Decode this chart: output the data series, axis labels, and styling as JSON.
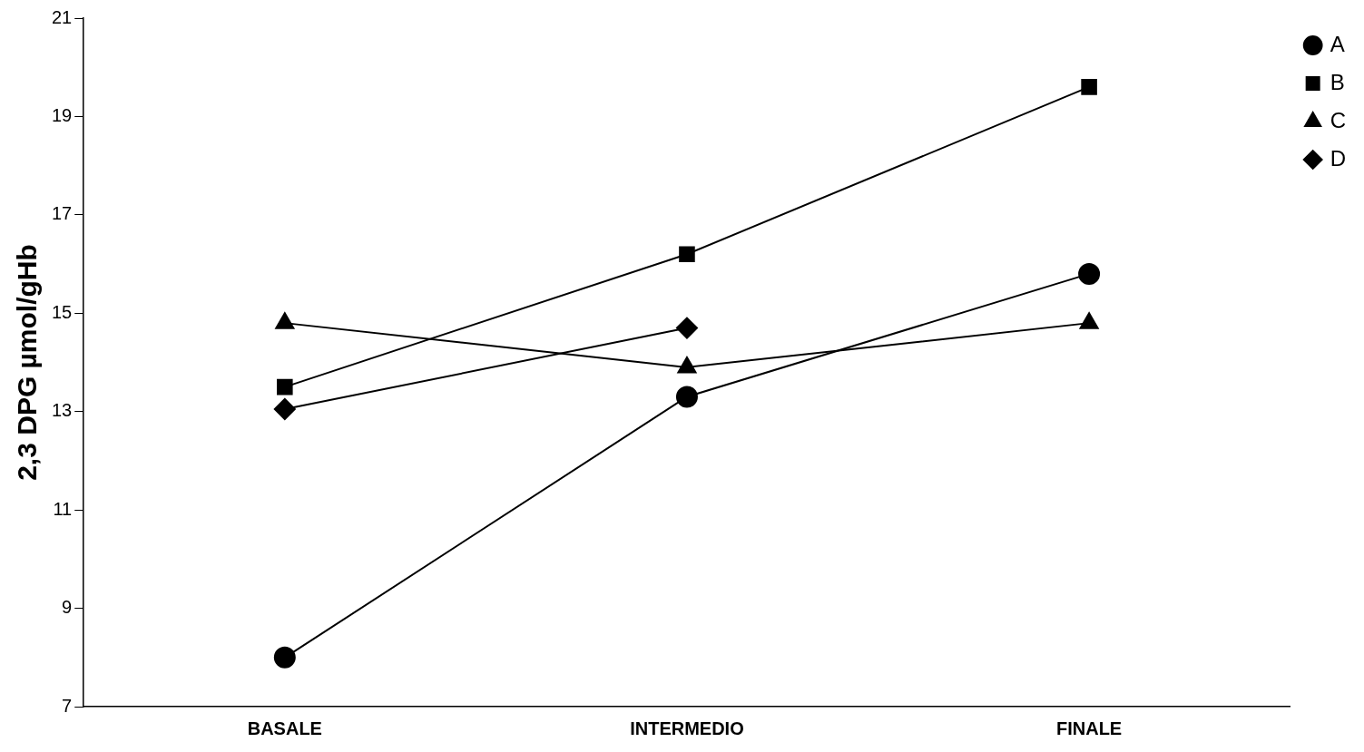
{
  "chart_data": {
    "type": "line",
    "ylabel": "2,3 DPG µmol/gHb",
    "categories": [
      "BASALE",
      "INTERMEDIO",
      "FINALE"
    ],
    "series": [
      {
        "name": "A",
        "color": "#000000",
        "marker": "circle",
        "values": [
          8.0,
          13.3,
          15.8
        ]
      },
      {
        "name": "B",
        "color": "#000000",
        "marker": "square",
        "values": [
          13.5,
          16.2,
          19.6
        ]
      },
      {
        "name": "C",
        "color": "#000000",
        "marker": "triangle",
        "values": [
          14.8,
          13.9,
          14.8
        ]
      },
      {
        "name": "D",
        "color": "#000000",
        "marker": "diamond",
        "values": [
          13.05,
          14.7,
          null
        ]
      }
    ],
    "ylim": [
      7,
      21
    ],
    "yticks": [
      7,
      9,
      11,
      13,
      15,
      17,
      19,
      21
    ],
    "grid": false,
    "legend": "top right",
    "line_style": "solid"
  }
}
